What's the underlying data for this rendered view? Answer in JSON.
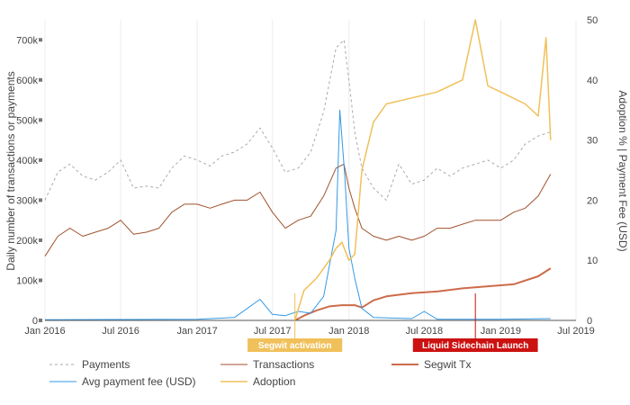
{
  "chart_data": {
    "type": "line",
    "x_axis": {
      "range": [
        "2016-01-01",
        "2019-07-01"
      ],
      "tick_labels": [
        "Jan 2016",
        "Jul 2016",
        "Jan 2017",
        "Jul 2017",
        "Jan 2018",
        "Jul 2018",
        "Jan 2019",
        "Jul 2019"
      ],
      "tick_dates": [
        "2016-01-01",
        "2016-07-01",
        "2017-01-01",
        "2017-07-01",
        "2018-01-01",
        "2018-07-01",
        "2019-01-01",
        "2019-07-01"
      ]
    },
    "y_left": {
      "label": "Daily number of transactions or payments",
      "range": [
        0,
        750000
      ],
      "ticks": [
        0,
        100000,
        200000,
        300000,
        400000,
        500000,
        600000,
        700000
      ],
      "tick_labels": [
        "0",
        "100k",
        "200k",
        "300k",
        "400k",
        "500k",
        "600k",
        "700k"
      ]
    },
    "y_right": {
      "label": "Adoption % | Payment Fee (USD)",
      "range": [
        0,
        50
      ],
      "ticks": [
        0,
        10,
        20,
        30,
        40,
        50
      ],
      "tick_labels": [
        "0",
        "10",
        "20",
        "30",
        "40",
        "50"
      ]
    },
    "grid": true,
    "legend_position": "bottom",
    "series": [
      {
        "name": "Payments",
        "axis": "left",
        "color": "#aaaaaa",
        "dash": "3,3",
        "points": [
          [
            "2016-01-01",
            300000
          ],
          [
            "2016-02-01",
            370000
          ],
          [
            "2016-03-01",
            390000
          ],
          [
            "2016-04-01",
            360000
          ],
          [
            "2016-05-01",
            350000
          ],
          [
            "2016-06-01",
            370000
          ],
          [
            "2016-07-01",
            400000
          ],
          [
            "2016-08-01",
            330000
          ],
          [
            "2016-09-01",
            335000
          ],
          [
            "2016-10-01",
            330000
          ],
          [
            "2016-11-01",
            380000
          ],
          [
            "2016-12-01",
            410000
          ],
          [
            "2017-01-01",
            400000
          ],
          [
            "2017-02-01",
            385000
          ],
          [
            "2017-03-01",
            410000
          ],
          [
            "2017-04-01",
            420000
          ],
          [
            "2017-05-01",
            440000
          ],
          [
            "2017-06-01",
            480000
          ],
          [
            "2017-07-01",
            430000
          ],
          [
            "2017-08-01",
            370000
          ],
          [
            "2017-09-01",
            380000
          ],
          [
            "2017-10-01",
            420000
          ],
          [
            "2017-11-01",
            520000
          ],
          [
            "2017-12-01",
            680000
          ],
          [
            "2017-12-20",
            700000
          ],
          [
            "2018-01-01",
            600000
          ],
          [
            "2018-01-15",
            470000
          ],
          [
            "2018-02-01",
            380000
          ],
          [
            "2018-03-01",
            330000
          ],
          [
            "2018-04-01",
            300000
          ],
          [
            "2018-05-01",
            390000
          ],
          [
            "2018-06-01",
            340000
          ],
          [
            "2018-07-01",
            350000
          ],
          [
            "2018-08-01",
            380000
          ],
          [
            "2018-09-01",
            360000
          ],
          [
            "2018-10-01",
            380000
          ],
          [
            "2018-11-01",
            390000
          ],
          [
            "2018-12-01",
            400000
          ],
          [
            "2019-01-01",
            380000
          ],
          [
            "2019-02-01",
            400000
          ],
          [
            "2019-03-01",
            440000
          ],
          [
            "2019-04-01",
            460000
          ],
          [
            "2019-05-01",
            470000
          ]
        ]
      },
      {
        "name": "Transactions",
        "axis": "left",
        "color": "#a0522d",
        "points": [
          [
            "2016-01-01",
            160000
          ],
          [
            "2016-02-01",
            210000
          ],
          [
            "2016-03-01",
            230000
          ],
          [
            "2016-04-01",
            210000
          ],
          [
            "2016-05-01",
            220000
          ],
          [
            "2016-06-01",
            230000
          ],
          [
            "2016-07-01",
            250000
          ],
          [
            "2016-08-01",
            215000
          ],
          [
            "2016-09-01",
            220000
          ],
          [
            "2016-10-01",
            230000
          ],
          [
            "2016-11-01",
            270000
          ],
          [
            "2016-12-01",
            290000
          ],
          [
            "2017-01-01",
            290000
          ],
          [
            "2017-02-01",
            280000
          ],
          [
            "2017-03-01",
            290000
          ],
          [
            "2017-04-01",
            300000
          ],
          [
            "2017-05-01",
            300000
          ],
          [
            "2017-06-01",
            320000
          ],
          [
            "2017-07-01",
            270000
          ],
          [
            "2017-08-01",
            230000
          ],
          [
            "2017-09-01",
            250000
          ],
          [
            "2017-10-01",
            260000
          ],
          [
            "2017-11-01",
            310000
          ],
          [
            "2017-12-01",
            380000
          ],
          [
            "2017-12-20",
            390000
          ],
          [
            "2018-01-01",
            330000
          ],
          [
            "2018-01-15",
            280000
          ],
          [
            "2018-02-01",
            230000
          ],
          [
            "2018-03-01",
            210000
          ],
          [
            "2018-04-01",
            200000
          ],
          [
            "2018-05-01",
            210000
          ],
          [
            "2018-06-01",
            200000
          ],
          [
            "2018-07-01",
            210000
          ],
          [
            "2018-08-01",
            230000
          ],
          [
            "2018-09-01",
            230000
          ],
          [
            "2018-10-01",
            240000
          ],
          [
            "2018-11-01",
            250000
          ],
          [
            "2018-12-01",
            250000
          ],
          [
            "2019-01-01",
            250000
          ],
          [
            "2019-02-01",
            270000
          ],
          [
            "2019-03-01",
            280000
          ],
          [
            "2019-04-01",
            310000
          ],
          [
            "2019-05-01",
            365000
          ]
        ]
      },
      {
        "name": "Segwit Tx",
        "axis": "left",
        "color": "#cd6b4a",
        "width": 2,
        "points": [
          [
            "2017-08-24",
            0
          ],
          [
            "2017-09-15",
            12000
          ],
          [
            "2017-10-15",
            25000
          ],
          [
            "2017-11-15",
            35000
          ],
          [
            "2017-12-15",
            38000
          ],
          [
            "2018-01-15",
            38000
          ],
          [
            "2018-02-01",
            32000
          ],
          [
            "2018-03-01",
            50000
          ],
          [
            "2018-04-01",
            60000
          ],
          [
            "2018-06-01",
            68000
          ],
          [
            "2018-08-01",
            72000
          ],
          [
            "2018-10-01",
            80000
          ],
          [
            "2018-12-01",
            85000
          ],
          [
            "2019-02-01",
            90000
          ],
          [
            "2019-04-01",
            110000
          ],
          [
            "2019-05-01",
            130000
          ]
        ]
      },
      {
        "name": "Avg payment fee (USD)",
        "axis": "right",
        "color": "#3399e6",
        "width": 1,
        "points": [
          [
            "2016-01-01",
            0.1
          ],
          [
            "2016-07-01",
            0.15
          ],
          [
            "2017-01-01",
            0.2
          ],
          [
            "2017-04-01",
            0.5
          ],
          [
            "2017-06-01",
            3.5
          ],
          [
            "2017-07-01",
            1.0
          ],
          [
            "2017-08-01",
            0.8
          ],
          [
            "2017-09-01",
            1.5
          ],
          [
            "2017-10-01",
            1.2
          ],
          [
            "2017-11-01",
            4.0
          ],
          [
            "2017-12-01",
            15.0
          ],
          [
            "2017-12-10",
            35.0
          ],
          [
            "2017-12-22",
            24.0
          ],
          [
            "2018-01-01",
            12.0
          ],
          [
            "2018-01-15",
            7.0
          ],
          [
            "2018-02-01",
            2.0
          ],
          [
            "2018-03-01",
            0.5
          ],
          [
            "2018-06-01",
            0.3
          ],
          [
            "2018-07-01",
            1.5
          ],
          [
            "2018-08-01",
            0.2
          ],
          [
            "2019-01-01",
            0.2
          ],
          [
            "2019-05-01",
            0.3
          ]
        ]
      },
      {
        "name": "Adoption",
        "axis": "right",
        "color": "#f0c05a",
        "width": 1.5,
        "points": [
          [
            "2017-08-24",
            0
          ],
          [
            "2017-09-15",
            5.0
          ],
          [
            "2017-10-15",
            7.0
          ],
          [
            "2017-11-15",
            10.0
          ],
          [
            "2017-12-01",
            12.0
          ],
          [
            "2017-12-15",
            13.0
          ],
          [
            "2018-01-01",
            10.0
          ],
          [
            "2018-01-15",
            11.0
          ],
          [
            "2018-02-01",
            25.0
          ],
          [
            "2018-03-01",
            33.0
          ],
          [
            "2018-04-01",
            36.0
          ],
          [
            "2018-06-01",
            37.0
          ],
          [
            "2018-08-01",
            38.0
          ],
          [
            "2018-10-01",
            40.0
          ],
          [
            "2018-11-01",
            50.0
          ],
          [
            "2018-12-01",
            39.0
          ],
          [
            "2019-01-01",
            38.0
          ],
          [
            "2019-03-01",
            36.0
          ],
          [
            "2019-04-01",
            34.0
          ],
          [
            "2019-04-20",
            47.0
          ],
          [
            "2019-05-01",
            30.0
          ]
        ]
      }
    ],
    "annotations": [
      {
        "date": "2017-08-24",
        "text": "Segwit activation",
        "color": "#f0c05a"
      },
      {
        "date": "2018-11-01",
        "text": "Liquid Sidechain Launch",
        "color": "#cc1111"
      }
    ]
  }
}
